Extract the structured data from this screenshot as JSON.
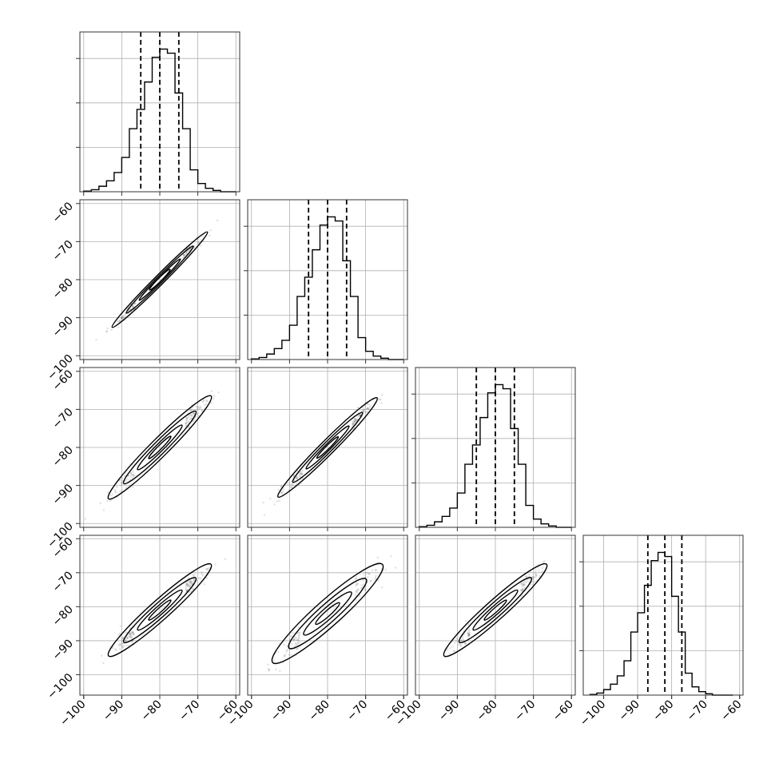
{
  "chart_data": {
    "type": "corner",
    "n_params": 4,
    "ranges": [
      [
        -101,
        -59
      ],
      [
        -101,
        -59
      ],
      [
        -101,
        -59
      ],
      [
        -106,
        -59
      ]
    ],
    "ticks": [
      [
        -100,
        -90,
        -80,
        -70,
        -60
      ],
      [
        -100,
        -90,
        -80,
        -70,
        -60
      ],
      [
        -100,
        -90,
        -80,
        -70,
        -60
      ],
      [
        -100,
        -90,
        -80,
        -70,
        -60
      ]
    ],
    "tick_labels": [
      "−100",
      "−90",
      "−80",
      "−70",
      "−60"
    ],
    "grid": true,
    "histograms": [
      {
        "bin_edges": [
          -100,
          -98,
          -96,
          -94,
          -92,
          -90,
          -88,
          -86,
          -84,
          -82,
          -80,
          -78,
          -76,
          -74,
          -72,
          -70,
          -68,
          -66,
          -64,
          -62,
          -60
        ],
        "values": [
          0.5,
          1.5,
          4,
          8,
          14,
          25,
          46,
          60,
          80,
          98,
          104,
          101,
          72,
          46,
          16,
          6,
          2.5,
          1,
          0,
          0
        ],
        "quantiles": [
          -85,
          -80,
          -75
        ]
      },
      {
        "bin_edges": [
          -100,
          -98,
          -96,
          -94,
          -92,
          -90,
          -88,
          -86,
          -84,
          -82,
          -80,
          -78,
          -76,
          -74,
          -72,
          -70,
          -68,
          -66,
          -64,
          -62,
          -60
        ],
        "values": [
          0.5,
          1.5,
          4,
          8,
          14,
          25,
          46,
          60,
          80,
          98,
          104,
          101,
          72,
          46,
          16,
          6,
          2.5,
          1,
          0,
          0
        ],
        "quantiles": [
          -85,
          -80,
          -75
        ]
      },
      {
        "bin_edges": [
          -100,
          -98,
          -96,
          -94,
          -92,
          -90,
          -88,
          -86,
          -84,
          -82,
          -80,
          -78,
          -76,
          -74,
          -72,
          -70,
          -68,
          -66,
          -64,
          -62,
          -60
        ],
        "values": [
          0.5,
          1.5,
          4,
          8,
          14,
          25,
          46,
          60,
          80,
          98,
          104,
          101,
          72,
          46,
          16,
          6,
          2.5,
          1,
          0,
          0
        ],
        "quantiles": [
          -85,
          -80,
          -75
        ]
      },
      {
        "bin_edges": [
          -104,
          -102,
          -100,
          -98,
          -96,
          -94,
          -92,
          -90,
          -88,
          -86,
          -84,
          -82,
          -80,
          -78,
          -76,
          -74,
          -72,
          -70,
          -68,
          -66,
          -64,
          -62
        ],
        "values": [
          0.5,
          1.5,
          4,
          8,
          14,
          25,
          46,
          60,
          80,
          98,
          104,
          101,
          72,
          46,
          16,
          6,
          2.5,
          1,
          0,
          0,
          0
        ],
        "quantiles": [
          -87,
          -82,
          -77
        ]
      }
    ],
    "pairs": [
      {
        "row": 1,
        "col": 0,
        "center": [
          -80,
          -80
        ],
        "spread": 4.8,
        "correlation": 0.99,
        "extent": [
          -98,
          -61
        ]
      },
      {
        "row": 2,
        "col": 0,
        "center": [
          -80,
          -80
        ],
        "spread": 5.2,
        "correlation": 0.97,
        "extent": [
          -99,
          -62
        ]
      },
      {
        "row": 2,
        "col": 1,
        "center": [
          -80,
          -80
        ],
        "spread": 5.0,
        "correlation": 0.98,
        "extent": [
          -99,
          -62
        ]
      },
      {
        "row": 3,
        "col": 0,
        "center": [
          -80,
          -81
        ],
        "spread": 5.2,
        "correlation": 0.96,
        "extent": [
          -99,
          -62
        ]
      },
      {
        "row": 3,
        "col": 1,
        "center": [
          -80,
          -82
        ],
        "spread": 5.6,
        "correlation": 0.94,
        "extent": [
          -99,
          -63
        ]
      },
      {
        "row": 3,
        "col": 2,
        "center": [
          -80,
          -81
        ],
        "spread": 5.2,
        "correlation": 0.96,
        "extent": [
          -99,
          -62
        ]
      }
    ]
  }
}
